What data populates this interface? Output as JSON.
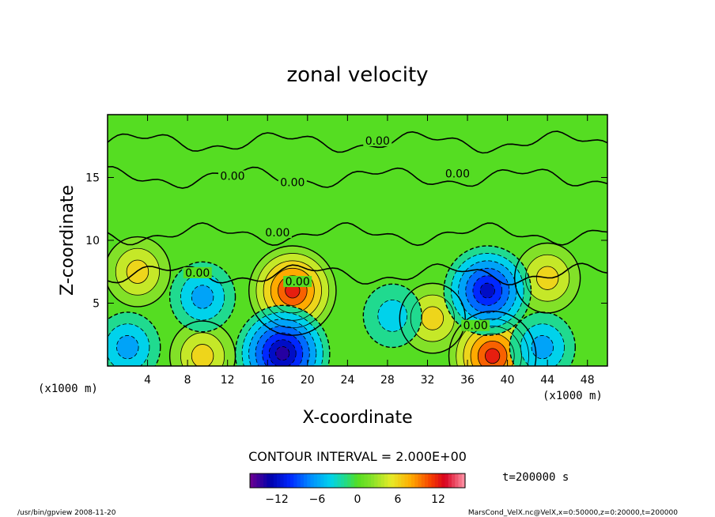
{
  "chart_data": {
    "type": "heatmap",
    "title": "zonal velocity",
    "xlabel": "X-coordinate",
    "ylabel": "Z-coordinate",
    "x_unit": "(x1000 m)",
    "y_unit": "(x1000 m)",
    "xlim": [
      0,
      50
    ],
    "ylim": [
      0,
      20
    ],
    "x_ticks": [
      "4",
      "8",
      "12",
      "16",
      "20",
      "24",
      "28",
      "32",
      "36",
      "40",
      "44",
      "48"
    ],
    "x_tick_values": [
      4,
      8,
      12,
      16,
      20,
      24,
      28,
      32,
      36,
      40,
      44,
      48
    ],
    "y_ticks": [
      "5",
      "10",
      "15"
    ],
    "y_tick_values": [
      5,
      10,
      15
    ],
    "contour_interval": "CONTOUR INTERVAL = 2.000E+00",
    "contour_labels": [
      {
        "text": "0.00",
        "x": 27.0,
        "y": 17.8
      },
      {
        "text": "0.00",
        "x": 12.5,
        "y": 15.0
      },
      {
        "text": "0.00",
        "x": 18.5,
        "y": 14.5
      },
      {
        "text": "0.00",
        "x": 35.0,
        "y": 15.2
      },
      {
        "text": "0.00",
        "x": 17.0,
        "y": 10.5
      },
      {
        "text": "0.00",
        "x": 9.0,
        "y": 7.3
      },
      {
        "text": "0.00",
        "x": 19.0,
        "y": 6.6
      },
      {
        "text": "0.00",
        "x": 36.8,
        "y": 3.1
      }
    ],
    "features": [
      {
        "kind": "max",
        "x": 18.5,
        "y": 6.0,
        "value": 12
      },
      {
        "kind": "max",
        "x": 3.0,
        "y": 7.5,
        "value": 6
      },
      {
        "kind": "max",
        "x": 38.5,
        "y": 0.8,
        "value": 12
      },
      {
        "kind": "max",
        "x": 9.5,
        "y": 0.8,
        "value": 6
      },
      {
        "kind": "max",
        "x": 44.0,
        "y": 7.0,
        "value": 6
      },
      {
        "kind": "max",
        "x": 32.5,
        "y": 3.8,
        "value": 6
      },
      {
        "kind": "min",
        "x": 38.0,
        "y": 6.0,
        "value": -12
      },
      {
        "kind": "min",
        "x": 17.5,
        "y": 1.0,
        "value": -14
      },
      {
        "kind": "min",
        "x": 9.5,
        "y": 5.5,
        "value": -6
      },
      {
        "kind": "min",
        "x": 2.0,
        "y": 1.5,
        "value": -6
      },
      {
        "kind": "min",
        "x": 43.5,
        "y": 1.5,
        "value": -6
      },
      {
        "kind": "min",
        "x": 28.5,
        "y": 4.0,
        "value": -4
      }
    ],
    "colorbar": {
      "min": -16,
      "max": 16,
      "ticks": [
        "−12",
        "−6",
        "0",
        "6",
        "12"
      ],
      "tick_values": [
        -12,
        -6,
        0,
        6,
        12
      ]
    },
    "time_label": "t=200000 s",
    "footer_left": "/usr/bin/gpview  2008-11-20",
    "footer_right": "MarsCond_VelX.nc@VelX,x=0:50000,z=0:20000,t=200000"
  }
}
